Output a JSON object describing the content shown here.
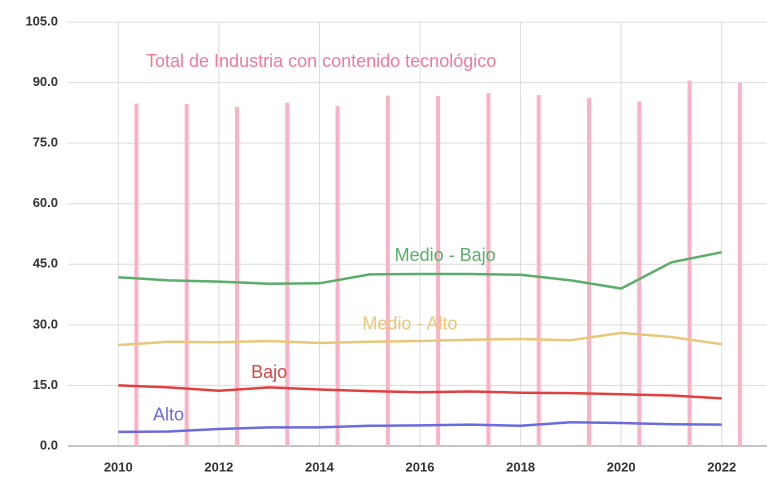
{
  "chart_data": {
    "type": "line",
    "x": [
      2010,
      2011,
      2012,
      2013,
      2014,
      2015,
      2016,
      2017,
      2018,
      2019,
      2020,
      2021,
      2022
    ],
    "xlim": [
      2009,
      2022.9
    ],
    "xticks": [
      2010,
      2012,
      2014,
      2016,
      2018,
      2020,
      2022
    ],
    "ylim": [
      0,
      105
    ],
    "yticks": [
      {
        "value": 0,
        "label": "0.0"
      },
      {
        "value": 15,
        "label": "15.0"
      },
      {
        "value": 30,
        "label": "30.0"
      },
      {
        "value": 45,
        "label": "45.0"
      },
      {
        "value": 60,
        "label": "60.0"
      },
      {
        "value": 75,
        "label": "75.0"
      },
      {
        "value": 90,
        "label": "90.0"
      },
      {
        "value": 105,
        "label": "105.0"
      }
    ],
    "grid": true,
    "series": [
      {
        "name": "Total de Industria con contenido tecnológico",
        "type": "bar",
        "color": "#f9b3c4",
        "values": [
          84.8,
          84.7,
          84.0,
          85.0,
          84.2,
          86.8,
          86.7,
          87.4,
          86.9,
          86.2,
          85.3,
          90.5,
          90.0
        ]
      },
      {
        "name": "Medio - Bajo",
        "color": "#5aad6a",
        "values": [
          41.8,
          41.0,
          40.7,
          40.2,
          40.3,
          42.5,
          42.6,
          42.6,
          42.4,
          41.0,
          39.0,
          45.5,
          48.0
        ]
      },
      {
        "name": "Medio - Alto",
        "color": "#e8c77a",
        "values": [
          25.0,
          25.8,
          25.7,
          26.0,
          25.5,
          25.8,
          26.0,
          26.3,
          26.5,
          26.2,
          28.0,
          27.0,
          25.2
        ]
      },
      {
        "name": "Bajo",
        "color": "#e04040",
        "values": [
          15.0,
          14.5,
          13.7,
          14.5,
          14.0,
          13.6,
          13.3,
          13.5,
          13.2,
          13.1,
          12.8,
          12.5,
          11.8
        ]
      },
      {
        "name": "Alto",
        "color": "#6b6be0",
        "values": [
          3.5,
          3.6,
          4.2,
          4.6,
          4.6,
          5.0,
          5.1,
          5.3,
          5.0,
          5.9,
          5.7,
          5.4,
          5.3
        ]
      }
    ]
  }
}
